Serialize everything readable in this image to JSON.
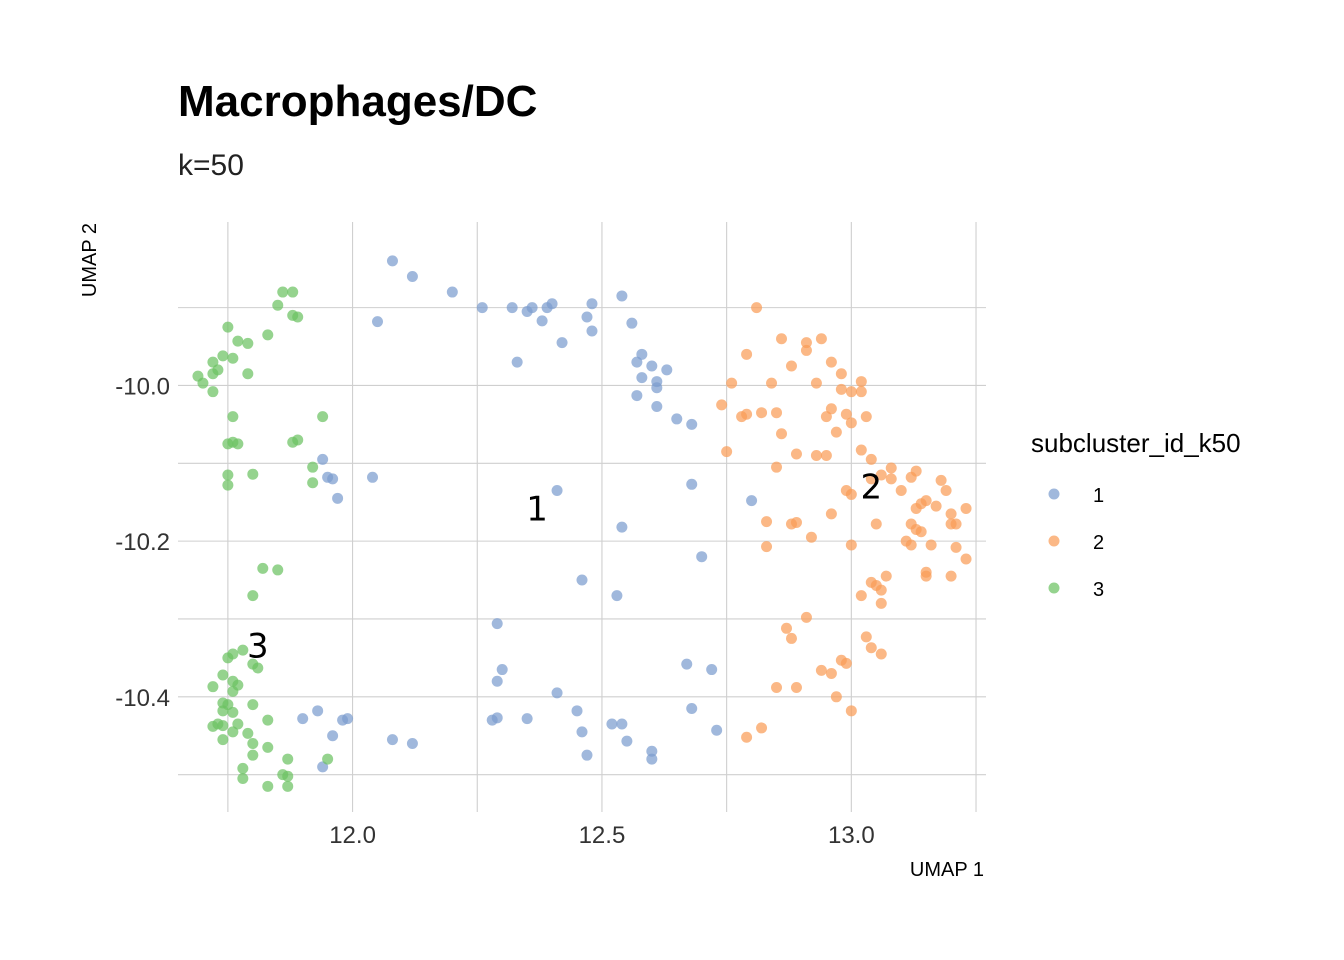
{
  "chart_data": {
    "type": "scatter",
    "title": "Macrophages/DC",
    "subtitle": "k=50",
    "xlabel": "UMAP 1",
    "ylabel": "UMAP 2",
    "xlim": [
      11.65,
      13.27
    ],
    "ylim": [
      -10.548,
      -9.79
    ],
    "x_ticks": [
      12.0,
      12.5,
      13.0
    ],
    "x_tick_labels": [
      "12.0",
      "12.5",
      "13.0"
    ],
    "x_minor": [
      11.75,
      12.25,
      12.75,
      13.25
    ],
    "y_ticks": [
      -10.0,
      -10.2,
      -10.4
    ],
    "y_tick_labels": [
      "-10.0",
      "-10.2",
      "-10.4"
    ],
    "y_minor": [
      -9.9,
      -10.1,
      -10.3,
      -10.5
    ],
    "grid": true,
    "legend": {
      "title": "subcluster_id_k50",
      "position": "right",
      "entries": [
        {
          "label": "1",
          "color": "#7b9ccf"
        },
        {
          "label": "2",
          "color": "#fa9d58"
        },
        {
          "label": "3",
          "color": "#6cc263"
        }
      ]
    },
    "cluster_labels": [
      {
        "text": "1",
        "x": 12.37,
        "y": -10.158
      },
      {
        "text": "2",
        "x": 13.04,
        "y": -10.13
      },
      {
        "text": "3",
        "x": 11.81,
        "y": -10.334
      }
    ],
    "series": [
      {
        "name": "1",
        "color": "#7b9ccf",
        "points": [
          [
            12.08,
            -9.84
          ],
          [
            12.12,
            -9.86
          ],
          [
            12.2,
            -9.88
          ],
          [
            12.26,
            -9.9
          ],
          [
            12.32,
            -9.9
          ],
          [
            12.35,
            -9.905
          ],
          [
            12.36,
            -9.9
          ],
          [
            12.39,
            -9.9
          ],
          [
            12.4,
            -9.895
          ],
          [
            12.38,
            -9.917
          ],
          [
            12.48,
            -9.895
          ],
          [
            12.47,
            -9.912
          ],
          [
            12.54,
            -9.885
          ],
          [
            12.05,
            -9.918
          ],
          [
            12.48,
            -9.93
          ],
          [
            12.42,
            -9.945
          ],
          [
            12.33,
            -9.97
          ],
          [
            12.56,
            -9.92
          ],
          [
            12.58,
            -9.96
          ],
          [
            12.57,
            -9.97
          ],
          [
            12.6,
            -9.975
          ],
          [
            12.63,
            -9.98
          ],
          [
            12.58,
            -9.99
          ],
          [
            12.61,
            -9.995
          ],
          [
            12.61,
            -10.003
          ],
          [
            12.57,
            -10.013
          ],
          [
            12.61,
            -10.027
          ],
          [
            12.65,
            -10.043
          ],
          [
            12.68,
            -10.05
          ],
          [
            11.94,
            -10.095
          ],
          [
            11.95,
            -10.118
          ],
          [
            11.96,
            -10.12
          ],
          [
            12.04,
            -10.118
          ],
          [
            11.97,
            -10.145
          ],
          [
            12.41,
            -10.135
          ],
          [
            12.68,
            -10.127
          ],
          [
            12.8,
            -10.148
          ],
          [
            12.54,
            -10.182
          ],
          [
            12.7,
            -10.22
          ],
          [
            12.46,
            -10.25
          ],
          [
            12.53,
            -10.27
          ],
          [
            12.29,
            -10.306
          ],
          [
            12.3,
            -10.365
          ],
          [
            12.29,
            -10.38
          ],
          [
            12.67,
            -10.358
          ],
          [
            12.72,
            -10.365
          ],
          [
            12.41,
            -10.395
          ],
          [
            11.93,
            -10.418
          ],
          [
            11.9,
            -10.428
          ],
          [
            11.98,
            -10.43
          ],
          [
            11.99,
            -10.428
          ],
          [
            12.28,
            -10.43
          ],
          [
            12.29,
            -10.427
          ],
          [
            12.35,
            -10.428
          ],
          [
            12.68,
            -10.415
          ],
          [
            12.45,
            -10.418
          ],
          [
            12.52,
            -10.435
          ],
          [
            12.54,
            -10.435
          ],
          [
            11.96,
            -10.45
          ],
          [
            12.08,
            -10.455
          ],
          [
            12.12,
            -10.46
          ],
          [
            12.46,
            -10.445
          ],
          [
            12.55,
            -10.457
          ],
          [
            12.73,
            -10.443
          ],
          [
            12.47,
            -10.475
          ],
          [
            12.6,
            -10.47
          ],
          [
            12.6,
            -10.48
          ],
          [
            11.94,
            -10.49
          ]
        ]
      },
      {
        "name": "2",
        "color": "#fa9d58",
        "points": [
          [
            12.81,
            -9.9
          ],
          [
            12.86,
            -9.94
          ],
          [
            12.91,
            -9.945
          ],
          [
            12.94,
            -9.94
          ],
          [
            12.91,
            -9.955
          ],
          [
            12.79,
            -9.96
          ],
          [
            12.88,
            -9.975
          ],
          [
            12.96,
            -9.97
          ],
          [
            12.98,
            -9.985
          ],
          [
            12.93,
            -9.997
          ],
          [
            12.76,
            -9.997
          ],
          [
            12.84,
            -9.997
          ],
          [
            13.02,
            -9.995
          ],
          [
            12.98,
            -10.005
          ],
          [
            13.0,
            -10.008
          ],
          [
            13.02,
            -10.008
          ],
          [
            12.74,
            -10.025
          ],
          [
            12.96,
            -10.03
          ],
          [
            12.85,
            -10.035
          ],
          [
            12.78,
            -10.04
          ],
          [
            12.79,
            -10.037
          ],
          [
            12.82,
            -10.035
          ],
          [
            12.95,
            -10.04
          ],
          [
            12.99,
            -10.037
          ],
          [
            13.0,
            -10.048
          ],
          [
            13.03,
            -10.04
          ],
          [
            12.97,
            -10.06
          ],
          [
            12.86,
            -10.062
          ],
          [
            12.75,
            -10.085
          ],
          [
            12.89,
            -10.088
          ],
          [
            12.93,
            -10.09
          ],
          [
            12.95,
            -10.09
          ],
          [
            13.02,
            -10.083
          ],
          [
            13.04,
            -10.095
          ],
          [
            12.85,
            -10.105
          ],
          [
            13.08,
            -10.106
          ],
          [
            13.06,
            -10.115
          ],
          [
            13.13,
            -10.11
          ],
          [
            13.04,
            -10.12
          ],
          [
            13.08,
            -10.12
          ],
          [
            13.12,
            -10.118
          ],
          [
            13.18,
            -10.122
          ],
          [
            12.99,
            -10.135
          ],
          [
            13.0,
            -10.14
          ],
          [
            13.1,
            -10.135
          ],
          [
            13.19,
            -10.135
          ],
          [
            13.15,
            -10.148
          ],
          [
            13.14,
            -10.152
          ],
          [
            13.13,
            -10.158
          ],
          [
            13.17,
            -10.155
          ],
          [
            13.23,
            -10.158
          ],
          [
            13.2,
            -10.165
          ],
          [
            12.96,
            -10.165
          ],
          [
            12.83,
            -10.175
          ],
          [
            12.88,
            -10.178
          ],
          [
            12.89,
            -10.176
          ],
          [
            13.05,
            -10.178
          ],
          [
            13.12,
            -10.178
          ],
          [
            13.13,
            -10.185
          ],
          [
            13.14,
            -10.188
          ],
          [
            13.21,
            -10.178
          ],
          [
            13.2,
            -10.178
          ],
          [
            12.92,
            -10.195
          ],
          [
            13.11,
            -10.2
          ],
          [
            13.12,
            -10.205
          ],
          [
            13.16,
            -10.205
          ],
          [
            12.83,
            -10.207
          ],
          [
            13.0,
            -10.205
          ],
          [
            13.21,
            -10.208
          ],
          [
            13.23,
            -10.223
          ],
          [
            13.07,
            -10.245
          ],
          [
            13.15,
            -10.24
          ],
          [
            13.15,
            -10.245
          ],
          [
            13.2,
            -10.245
          ],
          [
            13.04,
            -10.253
          ],
          [
            13.05,
            -10.257
          ],
          [
            13.06,
            -10.263
          ],
          [
            13.02,
            -10.27
          ],
          [
            13.06,
            -10.28
          ],
          [
            12.91,
            -10.298
          ],
          [
            12.87,
            -10.312
          ],
          [
            12.88,
            -10.325
          ],
          [
            13.03,
            -10.323
          ],
          [
            13.04,
            -10.337
          ],
          [
            13.06,
            -10.345
          ],
          [
            12.98,
            -10.353
          ],
          [
            12.99,
            -10.357
          ],
          [
            12.94,
            -10.366
          ],
          [
            12.96,
            -10.37
          ],
          [
            12.85,
            -10.388
          ],
          [
            12.89,
            -10.388
          ],
          [
            12.97,
            -10.4
          ],
          [
            13.0,
            -10.418
          ],
          [
            12.82,
            -10.44
          ],
          [
            12.79,
            -10.452
          ]
        ]
      },
      {
        "name": "3",
        "color": "#6cc263",
        "points": [
          [
            11.86,
            -9.88
          ],
          [
            11.88,
            -9.88
          ],
          [
            11.85,
            -9.897
          ],
          [
            11.88,
            -9.91
          ],
          [
            11.89,
            -9.912
          ],
          [
            11.75,
            -9.925
          ],
          [
            11.83,
            -9.935
          ],
          [
            11.77,
            -9.943
          ],
          [
            11.79,
            -9.946
          ],
          [
            11.74,
            -9.962
          ],
          [
            11.76,
            -9.965
          ],
          [
            11.72,
            -9.97
          ],
          [
            11.73,
            -9.98
          ],
          [
            11.72,
            -9.985
          ],
          [
            11.79,
            -9.985
          ],
          [
            11.69,
            -9.988
          ],
          [
            11.7,
            -9.997
          ],
          [
            11.72,
            -10.008
          ],
          [
            11.76,
            -10.04
          ],
          [
            11.94,
            -10.04
          ],
          [
            11.89,
            -10.07
          ],
          [
            11.88,
            -10.073
          ],
          [
            11.75,
            -10.075
          ],
          [
            11.76,
            -10.073
          ],
          [
            11.77,
            -10.075
          ],
          [
            11.92,
            -10.105
          ],
          [
            11.75,
            -10.115
          ],
          [
            11.8,
            -10.114
          ],
          [
            11.92,
            -10.125
          ],
          [
            11.75,
            -10.128
          ],
          [
            11.82,
            -10.235
          ],
          [
            11.85,
            -10.237
          ],
          [
            11.8,
            -10.27
          ],
          [
            11.75,
            -10.35
          ],
          [
            11.76,
            -10.345
          ],
          [
            11.78,
            -10.34
          ],
          [
            11.8,
            -10.358
          ],
          [
            11.81,
            -10.363
          ],
          [
            11.74,
            -10.372
          ],
          [
            11.76,
            -10.38
          ],
          [
            11.77,
            -10.385
          ],
          [
            11.72,
            -10.387
          ],
          [
            11.76,
            -10.393
          ],
          [
            11.74,
            -10.408
          ],
          [
            11.75,
            -10.41
          ],
          [
            11.8,
            -10.41
          ],
          [
            11.74,
            -10.418
          ],
          [
            11.76,
            -10.42
          ],
          [
            11.83,
            -10.43
          ],
          [
            11.73,
            -10.435
          ],
          [
            11.74,
            -10.437
          ],
          [
            11.72,
            -10.438
          ],
          [
            11.77,
            -10.435
          ],
          [
            11.76,
            -10.445
          ],
          [
            11.79,
            -10.447
          ],
          [
            11.74,
            -10.455
          ],
          [
            11.8,
            -10.46
          ],
          [
            11.83,
            -10.465
          ],
          [
            11.8,
            -10.475
          ],
          [
            11.87,
            -10.48
          ],
          [
            11.95,
            -10.48
          ],
          [
            11.78,
            -10.492
          ],
          [
            11.86,
            -10.5
          ],
          [
            11.87,
            -10.502
          ],
          [
            11.78,
            -10.505
          ],
          [
            11.87,
            -10.515
          ],
          [
            11.83,
            -10.515
          ]
        ]
      }
    ]
  }
}
